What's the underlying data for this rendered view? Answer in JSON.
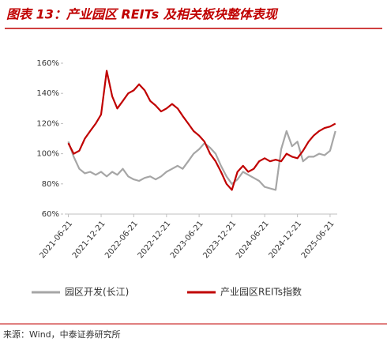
{
  "chart_data": {
    "type": "line",
    "title": "图表 13：产业园区 REITs 及相关板块整体表现",
    "source": "来源：Wind，中泰证券研究所",
    "x": [
      "2021-06-21",
      "2021-07-21",
      "2021-08-21",
      "2021-09-21",
      "2021-10-21",
      "2021-11-21",
      "2021-12-21",
      "2022-01-21",
      "2022-02-21",
      "2022-03-21",
      "2022-04-21",
      "2022-05-21",
      "2022-06-21",
      "2022-07-21",
      "2022-08-21",
      "2022-09-21",
      "2022-10-21",
      "2022-11-21",
      "2022-12-21",
      "2023-01-21",
      "2023-02-21",
      "2023-03-21",
      "2023-04-21",
      "2023-05-21",
      "2023-06-21",
      "2023-07-21",
      "2023-08-21",
      "2023-09-21",
      "2023-10-21",
      "2023-11-21",
      "2023-12-21",
      "2024-01-21",
      "2024-02-21",
      "2024-03-21",
      "2024-04-21",
      "2024-05-21",
      "2024-06-21",
      "2024-07-21",
      "2024-08-21",
      "2024-09-21",
      "2024-10-21",
      "2024-11-21",
      "2024-12-21",
      "2025-01-21",
      "2025-02-21",
      "2025-03-21",
      "2025-04-21",
      "2025-05-21",
      "2025-06-21",
      "2025-07-21"
    ],
    "xlim": [
      "2021-06-01",
      "2025-07-31"
    ],
    "xticks": [
      "2021-06-21",
      "2021-12-21",
      "2022-06-21",
      "2022-12-21",
      "2023-06-21",
      "2023-12-21",
      "2024-06-21",
      "2024-12-21",
      "2025-06-21"
    ],
    "ylim": [
      60,
      160
    ],
    "yticks": [
      {
        "value": 60,
        "label": "60%"
      },
      {
        "value": 80,
        "label": "80%"
      },
      {
        "value": 100,
        "label": "100%"
      },
      {
        "value": 120,
        "label": "120%"
      },
      {
        "value": 140,
        "label": "140%"
      },
      {
        "value": 160,
        "label": "160%"
      }
    ],
    "series": [
      {
        "name": "园区开发(长江)",
        "color": "#a6a6a6",
        "values": [
          108,
          98,
          90,
          87,
          88,
          86,
          88,
          85,
          88,
          86,
          90,
          85,
          83,
          82,
          84,
          85,
          83,
          85,
          88,
          90,
          92,
          90,
          95,
          100,
          103,
          107,
          104,
          100,
          92,
          85,
          80,
          83,
          88,
          86,
          84,
          82,
          78,
          77,
          76,
          103,
          115,
          105,
          108,
          95,
          98,
          98,
          100,
          99,
          102,
          115
        ]
      },
      {
        "name": "产业园区REITs指数",
        "color": "#c00000",
        "values": [
          107,
          100,
          102,
          110,
          115,
          120,
          126,
          155,
          138,
          130,
          135,
          140,
          142,
          146,
          142,
          135,
          132,
          128,
          130,
          133,
          130,
          125,
          120,
          115,
          112,
          108,
          100,
          95,
          88,
          80,
          76,
          88,
          92,
          88,
          90,
          95,
          97,
          95,
          96,
          95,
          100,
          98,
          97,
          102,
          108,
          112,
          115,
          117,
          118,
          120
        ]
      }
    ]
  }
}
